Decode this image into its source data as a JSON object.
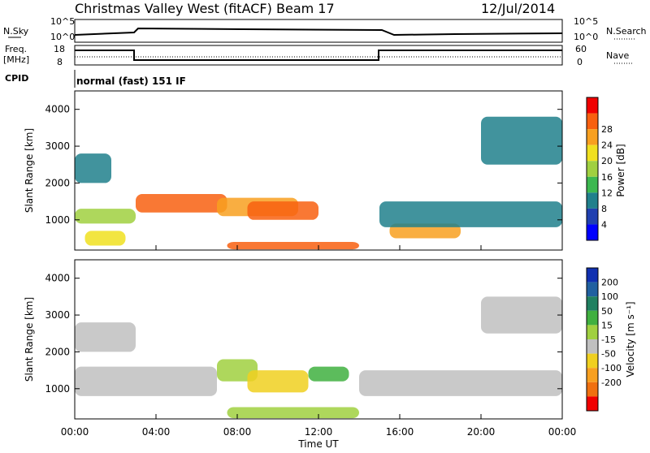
{
  "header": {
    "title": "Christmas Valley West (fitACF)",
    "beam": "Beam 17",
    "date": "12/Jul/2014"
  },
  "time_axis": {
    "label": "Time UT",
    "ticks": [
      "00:00",
      "04:00",
      "08:00",
      "12:00",
      "16:00",
      "20:00",
      "00:00"
    ],
    "range_hours": [
      0,
      24
    ]
  },
  "panel_nsky": {
    "left_label": "N.Sky",
    "right_label": "N.Search",
    "left_ticks": [
      "10^5",
      "10^0"
    ],
    "right_ticks": [
      "10^5",
      "10^0"
    ]
  },
  "panel_freq": {
    "left_label_1": "Freq.",
    "left_label_2": "[MHz]",
    "right_label": "Nave",
    "left_ticks": [
      "18",
      "8"
    ],
    "right_ticks": [
      "60",
      "0"
    ],
    "freq_steps_hours": [
      [
        0,
        3
      ],
      [
        3,
        15
      ],
      [
        15,
        24
      ]
    ],
    "freq_levels": [
      "high",
      "low",
      "high"
    ]
  },
  "panel_cpid": {
    "label": "CPID",
    "mode_text": "normal (fast) 151 IF"
  },
  "panel_power": {
    "ylabel": "Slant Range [km]",
    "yticks": [
      "1000",
      "2000",
      "3000",
      "4000"
    ],
    "yrange_km": [
      180,
      4500
    ],
    "colorbar_label": "Power [dB]",
    "colorbar_ticks": [
      "4",
      "8",
      "12",
      "16",
      "20",
      "24",
      "28"
    ],
    "colorbar_colors": [
      "#0000ff",
      "#2040b0",
      "#20808c",
      "#3cb850",
      "#a0d040",
      "#f0e020",
      "#f8a020",
      "#f86010",
      "#f00000"
    ]
  },
  "panel_velocity": {
    "ylabel": "Slant Range [km]",
    "yticks": [
      "1000",
      "2000",
      "3000",
      "4000"
    ],
    "yrange_km": [
      180,
      4500
    ],
    "colorbar_label": "Velocity [m s⁻¹]",
    "colorbar_ticks": [
      "200",
      "100",
      "50",
      "15",
      "-15",
      "-50",
      "-100",
      "-200"
    ],
    "colorbar_colors": [
      "#1030b0",
      "#2060a0",
      "#208060",
      "#40b040",
      "#a0d040",
      "#c0c0c0",
      "#f0d020",
      "#f8a020",
      "#f07010",
      "#f00000"
    ]
  },
  "chart_data": {
    "type": "heatmap",
    "x_unit": "hours UT",
    "y_unit": "km",
    "power_regions_dB": [
      {
        "t": [
          0.0,
          1.8
        ],
        "r": [
          2000,
          2800
        ],
        "value": 8
      },
      {
        "t": [
          0.0,
          3.0
        ],
        "r": [
          900,
          1300
        ],
        "value": 16
      },
      {
        "t": [
          0.5,
          2.5
        ],
        "r": [
          300,
          700
        ],
        "value": 20
      },
      {
        "t": [
          3.0,
          7.5
        ],
        "r": [
          1200,
          1700
        ],
        "value": 26
      },
      {
        "t": [
          7.0,
          11.0
        ],
        "r": [
          1100,
          1600
        ],
        "value": 22
      },
      {
        "t": [
          8.5,
          12.0
        ],
        "r": [
          1000,
          1500
        ],
        "value": 28
      },
      {
        "t": [
          7.5,
          14.0
        ],
        "r": [
          200,
          400
        ],
        "value": 26
      },
      {
        "t": [
          15.5,
          19.0
        ],
        "r": [
          500,
          900
        ],
        "value": 24
      },
      {
        "t": [
          15.0,
          24.0
        ],
        "r": [
          800,
          1500
        ],
        "value": 8
      },
      {
        "t": [
          20.0,
          24.0
        ],
        "r": [
          2500,
          3800
        ],
        "value": 6
      }
    ],
    "velocity_regions_ms": [
      {
        "t": [
          0.0,
          3.0
        ],
        "r": [
          2000,
          2800
        ],
        "value": 0
      },
      {
        "t": [
          0.0,
          7.0
        ],
        "r": [
          800,
          1600
        ],
        "value": 0
      },
      {
        "t": [
          7.0,
          9.0
        ],
        "r": [
          1200,
          1800
        ],
        "value": 15
      },
      {
        "t": [
          8.5,
          11.5
        ],
        "r": [
          900,
          1500
        ],
        "value": -60
      },
      {
        "t": [
          11.5,
          13.5
        ],
        "r": [
          1200,
          1600
        ],
        "value": 50
      },
      {
        "t": [
          7.5,
          14.0
        ],
        "r": [
          200,
          500
        ],
        "value": 20
      },
      {
        "t": [
          14.0,
          24.0
        ],
        "r": [
          800,
          1500
        ],
        "value": 0
      },
      {
        "t": [
          20.0,
          24.0
        ],
        "r": [
          2500,
          3500
        ],
        "value": 0
      }
    ]
  }
}
